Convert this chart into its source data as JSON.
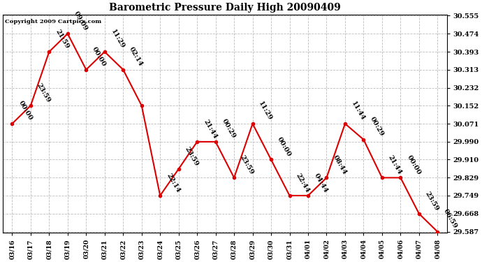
{
  "title": "Barometric Pressure Daily High 20090409",
  "copyright": "Copyright 2009 Cartpics.com",
  "x_labels": [
    "03/16",
    "03/17",
    "03/18",
    "03/19",
    "03/20",
    "03/21",
    "03/22",
    "03/23",
    "03/24",
    "03/25",
    "03/26",
    "03/27",
    "03/28",
    "03/29",
    "03/30",
    "03/31",
    "04/01",
    "04/02",
    "04/03",
    "04/04",
    "04/05",
    "04/06",
    "04/07",
    "04/08"
  ],
  "y_values": [
    30.071,
    30.152,
    30.393,
    30.474,
    30.313,
    30.393,
    30.313,
    30.152,
    29.749,
    29.868,
    29.99,
    29.99,
    29.829,
    30.071,
    29.91,
    29.749,
    29.749,
    29.829,
    30.071,
    30.0,
    29.829,
    29.829,
    29.668,
    29.587
  ],
  "point_labels": [
    "00:00",
    "23:59",
    "21:59",
    "09:09",
    "00:00",
    "11:29",
    "02:14",
    "",
    "22:14",
    "23:59",
    "21:44",
    "00:29",
    "23:59",
    "11:29",
    "00:00",
    "22:44",
    "04:44",
    "08:44",
    "11:44",
    "00:29",
    "21:44",
    "00:00",
    "23:59",
    "06:59"
  ],
  "line_color": "#dd0000",
  "marker_color": "#dd0000",
  "background_color": "#ffffff",
  "grid_color": "#bbbbbb",
  "y_min": 29.587,
  "y_max": 30.555,
  "y_ticks": [
    29.587,
    29.668,
    29.749,
    29.829,
    29.91,
    29.99,
    30.071,
    30.152,
    30.232,
    30.313,
    30.393,
    30.474,
    30.555
  ]
}
